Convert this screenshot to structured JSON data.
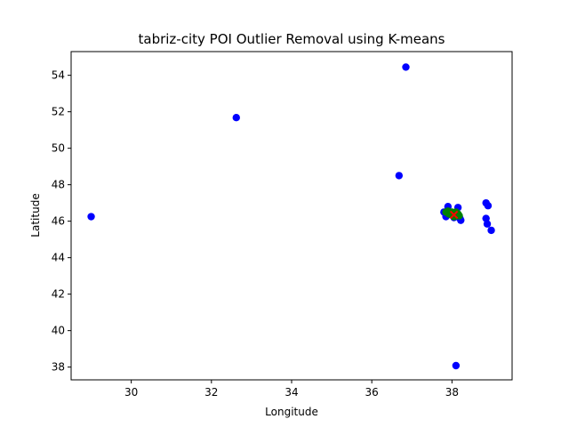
{
  "chart_data": {
    "type": "scatter",
    "title": "tabriz-city POI Outlier Removal using K-means",
    "xlabel": "Longitude",
    "ylabel": "Latitude",
    "xlim": [
      28.5,
      39.5
    ],
    "ylim": [
      37.3,
      55.3
    ],
    "xticks": [
      30,
      32,
      34,
      36,
      38
    ],
    "yticks": [
      38,
      40,
      42,
      44,
      46,
      48,
      50,
      52,
      54
    ],
    "grid": false,
    "series": [
      {
        "color": "#0000ff",
        "marker": "circle",
        "points": [
          [
            29.0,
            46.25
          ],
          [
            32.62,
            51.68
          ],
          [
            36.85,
            54.45
          ],
          [
            36.68,
            48.5
          ],
          [
            38.1,
            38.08
          ],
          [
            37.8,
            46.5
          ],
          [
            37.85,
            46.25
          ],
          [
            37.9,
            46.8
          ],
          [
            38.15,
            46.75
          ],
          [
            38.2,
            46.15
          ],
          [
            38.22,
            46.05
          ],
          [
            38.05,
            46.2
          ],
          [
            38.85,
            47.0
          ],
          [
            38.9,
            46.85
          ],
          [
            38.85,
            46.15
          ],
          [
            38.88,
            45.85
          ],
          [
            38.98,
            45.5
          ]
        ]
      },
      {
        "color": "#008000",
        "marker": "circle",
        "points": [
          [
            37.85,
            46.5
          ],
          [
            37.9,
            46.55
          ],
          [
            37.95,
            46.45
          ],
          [
            38.0,
            46.5
          ],
          [
            38.05,
            46.45
          ],
          [
            38.1,
            46.5
          ],
          [
            38.15,
            46.4
          ],
          [
            38.12,
            46.3
          ],
          [
            37.98,
            46.35
          ],
          [
            38.05,
            46.25
          ],
          [
            37.92,
            46.4
          ],
          [
            38.18,
            46.3
          ]
        ]
      },
      {
        "color": "#ff0000",
        "marker": "x",
        "points": [
          [
            38.05,
            46.35
          ]
        ]
      }
    ]
  }
}
